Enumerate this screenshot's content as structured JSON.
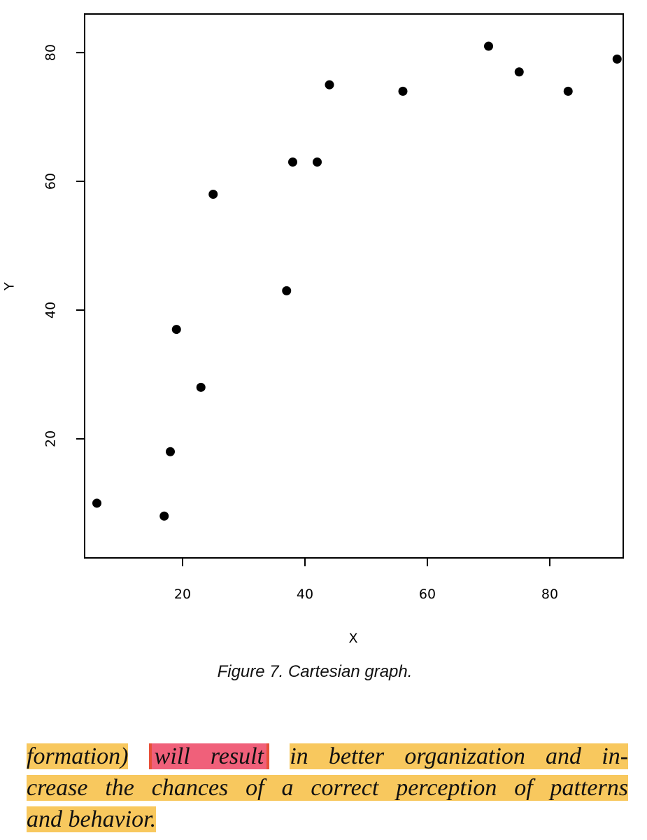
{
  "chart_data": {
    "type": "scatter",
    "title": "",
    "xlabel": "X",
    "ylabel": "Y",
    "xlim": [
      4,
      92
    ],
    "ylim": [
      1.5,
      86
    ],
    "xticks": [
      20,
      40,
      60,
      80
    ],
    "yticks": [
      20,
      40,
      60,
      80
    ],
    "grid": false,
    "points": [
      {
        "x": 6,
        "y": 10
      },
      {
        "x": 17,
        "y": 8
      },
      {
        "x": 18,
        "y": 18
      },
      {
        "x": 19,
        "y": 37
      },
      {
        "x": 23,
        "y": 28
      },
      {
        "x": 25,
        "y": 58
      },
      {
        "x": 37,
        "y": 43
      },
      {
        "x": 38,
        "y": 63
      },
      {
        "x": 42,
        "y": 63
      },
      {
        "x": 44,
        "y": 75
      },
      {
        "x": 56,
        "y": 74
      },
      {
        "x": 70,
        "y": 81
      },
      {
        "x": 75,
        "y": 77
      },
      {
        "x": 83,
        "y": 74
      },
      {
        "x": 91,
        "y": 79
      }
    ]
  },
  "caption": "Figure 7. Cartesian graph.",
  "paragraph": {
    "line1_start": "formation)",
    "line1_highlight": "will result",
    "line1_end": "in better organization and in-",
    "line2": "crease the chances of a correct perception of patterns",
    "line3": "and behavior."
  },
  "colors": {
    "highlight_yellow": "#f8c85e",
    "highlight_pink": "#f0607a",
    "ink": "#000000"
  }
}
